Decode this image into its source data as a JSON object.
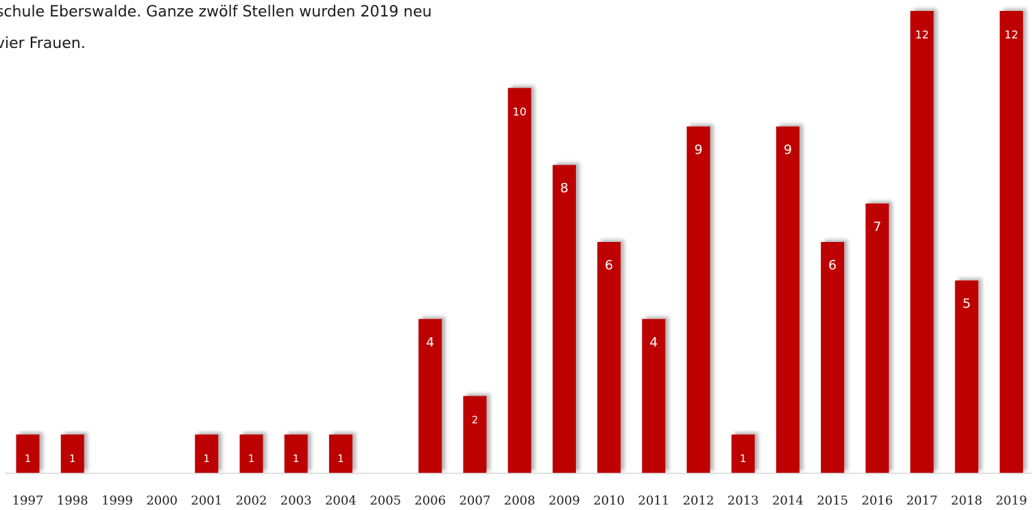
{
  "intro": {
    "line1": "schule Eberswalde. Ganze zwölf Stellen wurden 2019 neu",
    "line2": "vier Frauen."
  },
  "colors": {
    "bar": "#bd0000",
    "axis": "#d4d4d4",
    "text": "#222222",
    "label": "#ffffff"
  },
  "chart_data": {
    "type": "bar",
    "title": "",
    "xlabel": "",
    "ylabel": "",
    "grid": false,
    "ylim": [
      0,
      12
    ],
    "categories": [
      "1997",
      "1998",
      "1999",
      "2000",
      "2001",
      "2002",
      "2003",
      "2004",
      "2005",
      "2006",
      "2007",
      "2008",
      "2009",
      "2010",
      "2011",
      "2012",
      "2013",
      "2014",
      "2015",
      "2016",
      "2017",
      "2018",
      "2019"
    ],
    "values": [
      1,
      1,
      0,
      0,
      1,
      1,
      1,
      1,
      0,
      4,
      2,
      10,
      8,
      6,
      4,
      9,
      1,
      9,
      6,
      7,
      12,
      5,
      12
    ]
  }
}
